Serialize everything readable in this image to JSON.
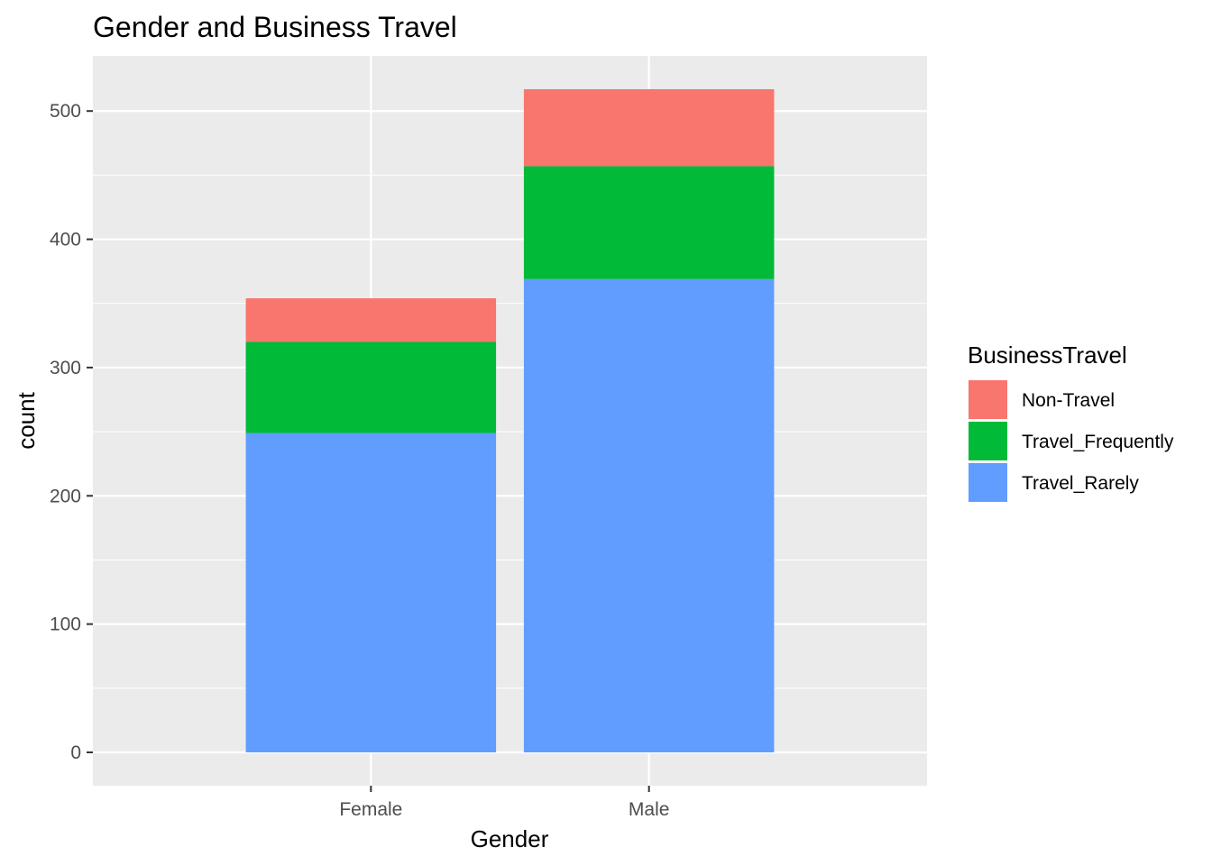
{
  "chart_data": {
    "type": "bar",
    "stacked": true,
    "title": "Gender and Business Travel",
    "xlabel": "Gender",
    "ylabel": "count",
    "categories": [
      "Female",
      "Male"
    ],
    "series": [
      {
        "name": "Travel_Rarely",
        "values": [
          249,
          369
        ],
        "color": "#619CFF"
      },
      {
        "name": "Travel_Frequently",
        "values": [
          71,
          88
        ],
        "color": "#00BA38"
      },
      {
        "name": "Non-Travel",
        "values": [
          34,
          60
        ],
        "color": "#F8766D"
      }
    ],
    "ylim": [
      -26,
      543
    ],
    "yticks": [
      0,
      100,
      200,
      300,
      400,
      500
    ],
    "ytick_labels": [
      "0",
      "100",
      "200",
      "300",
      "400",
      "500"
    ],
    "grid": true,
    "legend": {
      "title": "BusinessTravel",
      "position": "right",
      "entries": [
        "Non-Travel",
        "Travel_Frequently",
        "Travel_Rarely"
      ]
    }
  }
}
